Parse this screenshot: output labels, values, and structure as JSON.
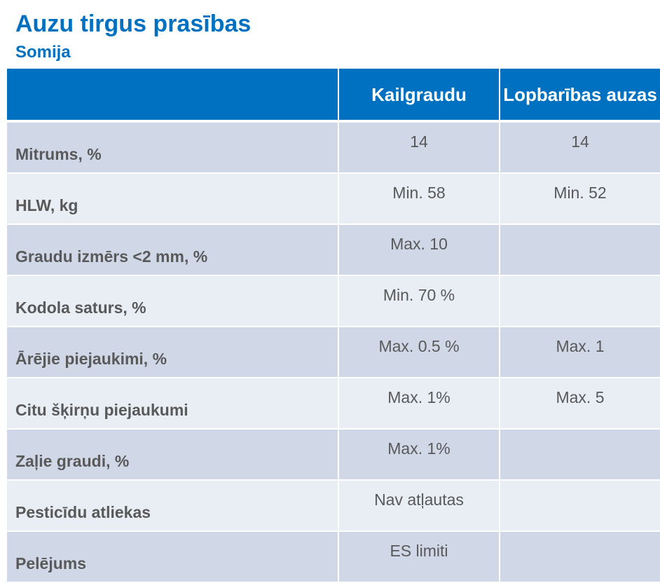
{
  "title": "Auzu tirgus prasības",
  "subtitle": "Somija",
  "table": {
    "headers": [
      "",
      "Kailgraudu",
      "Lopbarības auzas"
    ],
    "rows": [
      {
        "label": "Mitrums, %",
        "kailgraudu": "14",
        "lopbaribas": "14"
      },
      {
        "label": "HLW, kg",
        "kailgraudu": "Min. 58",
        "lopbaribas": "Min. 52"
      },
      {
        "label": "Graudu izmērs  <2 mm, %",
        "kailgraudu": "Max. 10",
        "lopbaribas": ""
      },
      {
        "label": "Kodola saturs, %",
        "kailgraudu": "Min. 70 %",
        "lopbaribas": ""
      },
      {
        "label": "Ārējie piejaukimi, %",
        "kailgraudu": "Max. 0.5 %",
        "lopbaribas": "Max. 1"
      },
      {
        "label": "Citu šķirņu piejaukumi",
        "kailgraudu": "Max. 1%",
        "lopbaribas": "Max. 5"
      },
      {
        "label": "Zaļie graudi, %",
        "kailgraudu": "Max. 1%",
        "lopbaribas": ""
      },
      {
        "label": "Pesticīdu atliekas",
        "kailgraudu": "Nav atļautas",
        "lopbaribas": ""
      },
      {
        "label": "Pelējums",
        "kailgraudu": "ES limiti",
        "lopbaribas": ""
      }
    ]
  },
  "colors": {
    "accent": "#0070c0",
    "header_bg": "#0070c0",
    "row_odd": "#d0d8e8",
    "row_even": "#e9edf4",
    "text": "#595959"
  }
}
